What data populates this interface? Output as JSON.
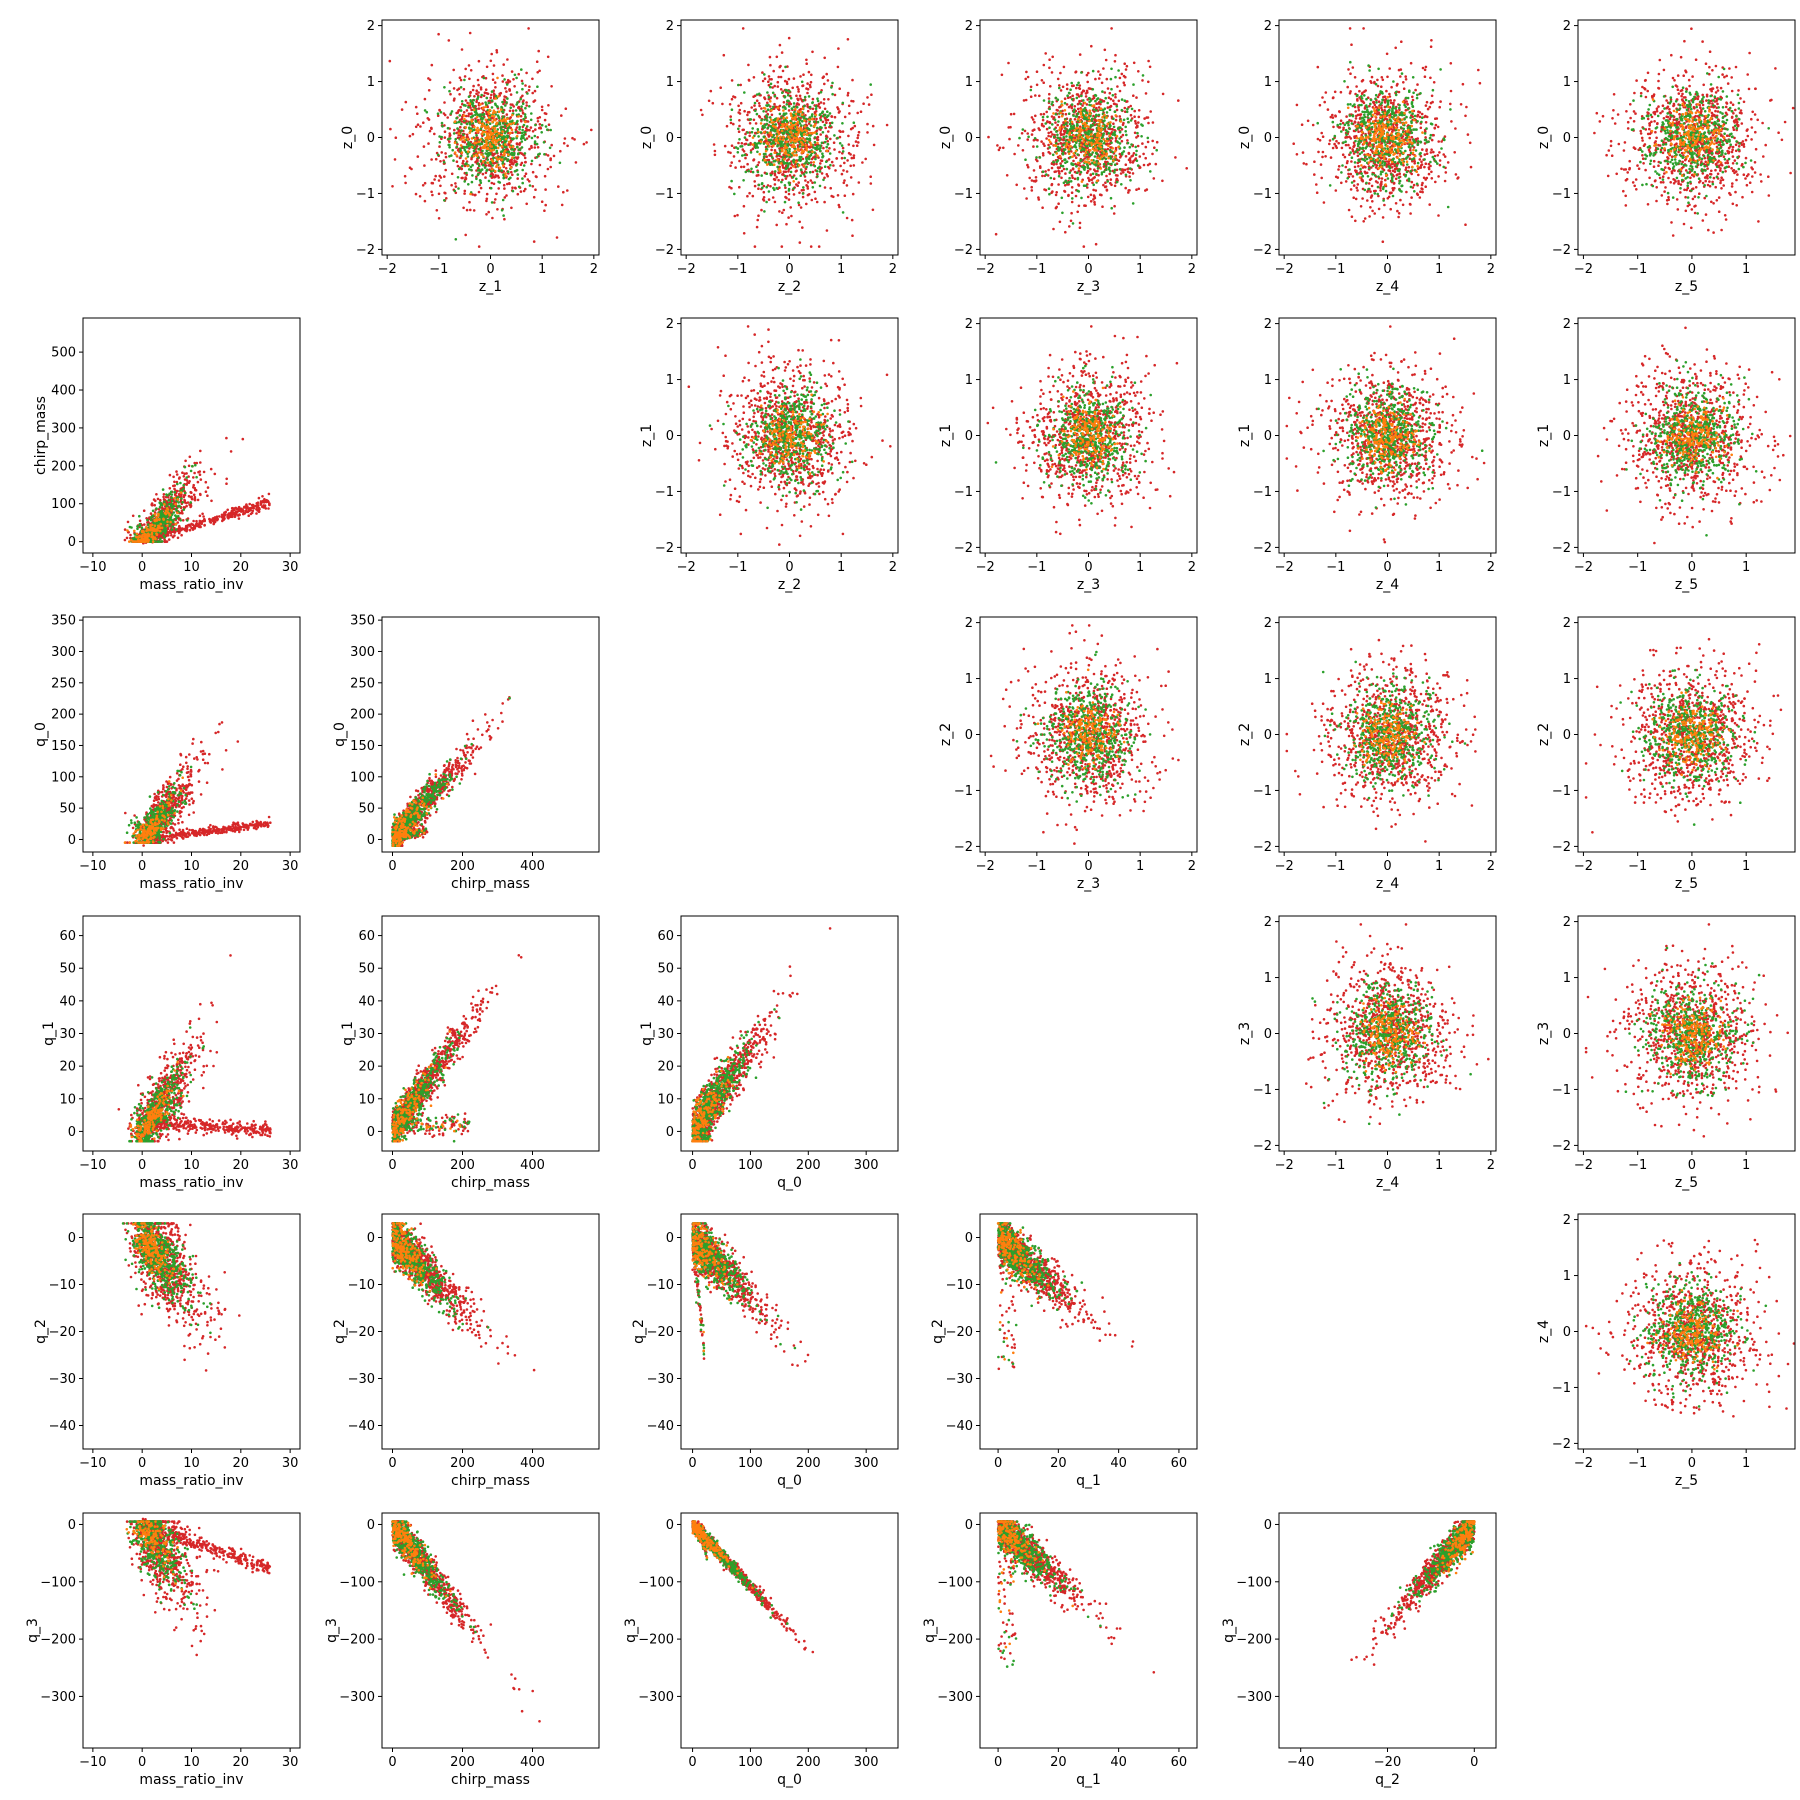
{
  "chart_data": {
    "type": "scatter",
    "layout": "pair-plot",
    "grid": false,
    "point_colors": [
      "#d62728",
      "#2ca02c",
      "#ff7f0e"
    ],
    "variables": {
      "mass_ratio_inv": {
        "lim": [
          -12,
          32
        ],
        "ticks": [
          -10,
          0,
          10,
          20,
          30
        ],
        "tick_labels": [
          "−10",
          "0",
          "10",
          "20",
          "30"
        ]
      },
      "chirp_mass": {
        "lim": [
          -30,
          590
        ],
        "ticks": [
          0,
          200,
          400
        ],
        "tick_labels": [
          "0",
          "200",
          "400"
        ],
        "ylim": [
          -30,
          590
        ],
        "yticks": [
          0,
          100,
          200,
          300,
          400,
          500
        ],
        "ytick_labels": [
          "0",
          "100",
          "200",
          "300",
          "400",
          "500"
        ]
      },
      "q_0": {
        "lim": [
          -20,
          355
        ],
        "ticks": [
          0,
          100,
          200,
          300
        ],
        "tick_labels": [
          "0",
          "100",
          "200",
          "300"
        ],
        "ylim": [
          -20,
          355
        ],
        "yticks": [
          0,
          50,
          100,
          150,
          200,
          250,
          300,
          350
        ],
        "ytick_labels": [
          "0",
          "50",
          "100",
          "150",
          "200",
          "250",
          "300",
          "350"
        ]
      },
      "q_1": {
        "lim": [
          -6,
          66
        ],
        "ticks": [
          0,
          20,
          40,
          60
        ],
        "tick_labels": [
          "0",
          "20",
          "40",
          "60"
        ],
        "ylim": [
          -6,
          66
        ],
        "yticks": [
          0,
          10,
          20,
          30,
          40,
          50,
          60
        ],
        "ytick_labels": [
          "0",
          "10",
          "20",
          "30",
          "40",
          "50",
          "60"
        ]
      },
      "q_2": {
        "lim": [
          -45,
          5
        ],
        "ticks": [
          -40,
          -20,
          0
        ],
        "tick_labels": [
          "−40",
          "−20",
          "0"
        ],
        "ylim": [
          -45,
          5
        ],
        "yticks": [
          -40,
          -30,
          -20,
          -10,
          0
        ],
        "ytick_labels": [
          "−40",
          "−30",
          "−20",
          "−10",
          "0"
        ]
      },
      "q_3": {
        "ylim": [
          -390,
          20
        ],
        "yticks": [
          -300,
          -200,
          -100,
          0
        ],
        "ytick_labels": [
          "−300",
          "−200",
          "−100",
          "0"
        ]
      },
      "z": {
        "lim": [
          -2.1,
          2.1
        ],
        "ticks": [
          -2,
          -1,
          0,
          1,
          2
        ],
        "tick_labels": [
          "−2",
          "−1",
          "0",
          "1",
          "2"
        ],
        "ylim": [
          -2.1,
          2.1
        ],
        "yticks": [
          -2,
          -1,
          0,
          1,
          2
        ],
        "ytick_labels": [
          "−2",
          "−1",
          "0",
          "1",
          "2"
        ]
      },
      "z_5": {
        "lim": [
          -2.1,
          1.9
        ],
        "ticks": [
          -2,
          -1,
          0,
          1
        ],
        "tick_labels": [
          "−2",
          "−1",
          "0",
          "1"
        ]
      }
    },
    "panels": [
      {
        "row": 0,
        "col": 1,
        "xlabel": "z_1",
        "ylabel": "z_0",
        "x": "z",
        "y": "z",
        "pattern": "normal"
      },
      {
        "row": 0,
        "col": 2,
        "xlabel": "z_2",
        "ylabel": "z_0",
        "x": "z",
        "y": "z",
        "pattern": "normal"
      },
      {
        "row": 0,
        "col": 3,
        "xlabel": "z_3",
        "ylabel": "z_0",
        "x": "z",
        "y": "z",
        "pattern": "normal"
      },
      {
        "row": 0,
        "col": 4,
        "xlabel": "z_4",
        "ylabel": "z_0",
        "x": "z",
        "y": "z",
        "pattern": "normal"
      },
      {
        "row": 0,
        "col": 5,
        "xlabel": "z_5",
        "ylabel": "z_0",
        "x": "z_5",
        "y": "z",
        "pattern": "normal"
      },
      {
        "row": 1,
        "col": 0,
        "xlabel": "mass_ratio_inv",
        "ylabel": "chirp_mass",
        "x": "mass_ratio_inv",
        "y": "chirp_mass",
        "pattern": "mri_chirp"
      },
      {
        "row": 1,
        "col": 2,
        "xlabel": "z_2",
        "ylabel": "z_1",
        "x": "z",
        "y": "z",
        "pattern": "normal"
      },
      {
        "row": 1,
        "col": 3,
        "xlabel": "z_3",
        "ylabel": "z_1",
        "x": "z",
        "y": "z",
        "pattern": "normal"
      },
      {
        "row": 1,
        "col": 4,
        "xlabel": "z_4",
        "ylabel": "z_1",
        "x": "z",
        "y": "z",
        "pattern": "normal"
      },
      {
        "row": 1,
        "col": 5,
        "xlabel": "z_5",
        "ylabel": "z_1",
        "x": "z_5",
        "y": "z",
        "pattern": "normal"
      },
      {
        "row": 2,
        "col": 0,
        "xlabel": "mass_ratio_inv",
        "ylabel": "q_0",
        "x": "mass_ratio_inv",
        "y": "q_0",
        "pattern": "mri_q0"
      },
      {
        "row": 2,
        "col": 1,
        "xlabel": "chirp_mass",
        "ylabel": "q_0",
        "x": "chirp_mass",
        "y": "q_0",
        "pattern": "chirp_q0"
      },
      {
        "row": 2,
        "col": 3,
        "xlabel": "z_3",
        "ylabel": "z_2",
        "x": "z",
        "y": "z",
        "pattern": "normal"
      },
      {
        "row": 2,
        "col": 4,
        "xlabel": "z_4",
        "ylabel": "z_2",
        "x": "z",
        "y": "z",
        "pattern": "normal"
      },
      {
        "row": 2,
        "col": 5,
        "xlabel": "z_5",
        "ylabel": "z_2",
        "x": "z_5",
        "y": "z",
        "pattern": "normal"
      },
      {
        "row": 3,
        "col": 0,
        "xlabel": "mass_ratio_inv",
        "ylabel": "q_1",
        "x": "mass_ratio_inv",
        "y": "q_1",
        "pattern": "mri_q1"
      },
      {
        "row": 3,
        "col": 1,
        "xlabel": "chirp_mass",
        "ylabel": "q_1",
        "x": "chirp_mass",
        "y": "q_1",
        "pattern": "chirp_q1"
      },
      {
        "row": 3,
        "col": 2,
        "xlabel": "q_0",
        "ylabel": "q_1",
        "x": "q_0",
        "y": "q_1",
        "pattern": "q0_q1"
      },
      {
        "row": 3,
        "col": 4,
        "xlabel": "z_4",
        "ylabel": "z_3",
        "x": "z",
        "y": "z",
        "pattern": "normal"
      },
      {
        "row": 3,
        "col": 5,
        "xlabel": "z_5",
        "ylabel": "z_3",
        "x": "z_5",
        "y": "z",
        "pattern": "normal"
      },
      {
        "row": 4,
        "col": 0,
        "xlabel": "mass_ratio_inv",
        "ylabel": "q_2",
        "x": "mass_ratio_inv",
        "y": "q_2",
        "pattern": "mri_q2"
      },
      {
        "row": 4,
        "col": 1,
        "xlabel": "chirp_mass",
        "ylabel": "q_2",
        "x": "chirp_mass",
        "y": "q_2",
        "pattern": "chirp_q2"
      },
      {
        "row": 4,
        "col": 2,
        "xlabel": "q_0",
        "ylabel": "q_2",
        "x": "q_0",
        "y": "q_2",
        "pattern": "q0_q2"
      },
      {
        "row": 4,
        "col": 3,
        "xlabel": "q_1",
        "ylabel": "q_2",
        "x": "q_1",
        "y": "q_2",
        "pattern": "q1_q2"
      },
      {
        "row": 4,
        "col": 5,
        "xlabel": "z_5",
        "ylabel": "z_4",
        "x": "z_5",
        "y": "z",
        "pattern": "normal"
      },
      {
        "row": 5,
        "col": 0,
        "xlabel": "mass_ratio_inv",
        "ylabel": "q_3",
        "x": "mass_ratio_inv",
        "y": "q_3",
        "pattern": "mri_q3"
      },
      {
        "row": 5,
        "col": 1,
        "xlabel": "chirp_mass",
        "ylabel": "q_3",
        "x": "chirp_mass",
        "y": "q_3",
        "pattern": "chirp_q3"
      },
      {
        "row": 5,
        "col": 2,
        "xlabel": "q_0",
        "ylabel": "q_3",
        "x": "q_0",
        "y": "q_3",
        "pattern": "q0_q3"
      },
      {
        "row": 5,
        "col": 3,
        "xlabel": "q_1",
        "ylabel": "q_3",
        "x": "q_1",
        "y": "q_3",
        "pattern": "q1_q3"
      },
      {
        "row": 5,
        "col": 4,
        "xlabel": "q_2",
        "ylabel": "q_3",
        "x": "q_2",
        "y": "q_3",
        "pattern": "q2_q3"
      }
    ]
  }
}
